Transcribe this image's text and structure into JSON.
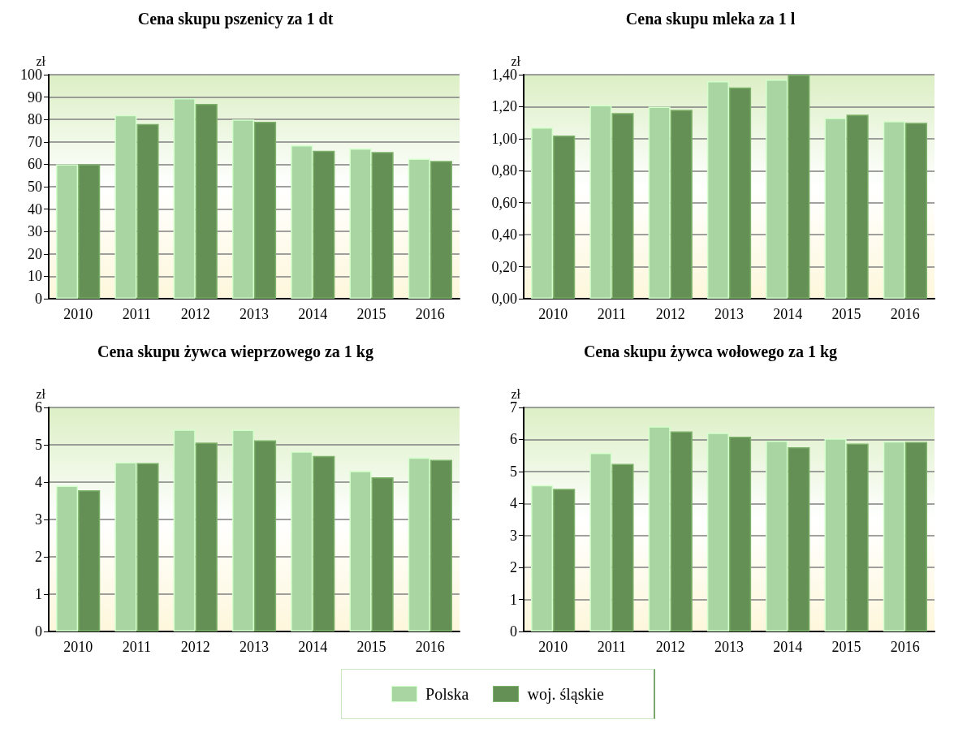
{
  "chart_data": [
    {
      "type": "bar",
      "title": "Cena skupu pszenicy za 1 dt",
      "ylabel": "zł",
      "categories": [
        "2010",
        "2011",
        "2012",
        "2013",
        "2014",
        "2015",
        "2016"
      ],
      "series": [
        {
          "name": "Polska",
          "color": "#a9d5a3",
          "values": [
            60,
            82,
            89.5,
            80,
            68.5,
            67,
            62.5
          ]
        },
        {
          "name": "woj. śląskie",
          "color": "#648f55",
          "values": [
            60,
            78,
            87,
            79,
            66,
            65.5,
            61.5
          ]
        }
      ],
      "ylim": [
        0,
        100
      ],
      "yticks": [
        0,
        10,
        20,
        30,
        40,
        50,
        60,
        70,
        80,
        90,
        100
      ],
      "grid": "y",
      "legend": "bottom"
    },
    {
      "type": "bar",
      "title": "Cena skupu mleka za 1 l",
      "ylabel": "zł",
      "categories": [
        "2010",
        "2011",
        "2012",
        "2013",
        "2014",
        "2015",
        "2016"
      ],
      "series": [
        {
          "name": "Polska",
          "color": "#a9d5a3",
          "values": [
            1.07,
            1.21,
            1.2,
            1.36,
            1.37,
            1.13,
            1.11
          ]
        },
        {
          "name": "woj. śląskie",
          "color": "#648f55",
          "values": [
            1.02,
            1.16,
            1.18,
            1.32,
            1.4,
            1.15,
            1.1
          ]
        }
      ],
      "ylim": [
        0,
        1.4
      ],
      "yticks": [
        {
          "value": 0,
          "label": "0,00"
        },
        {
          "value": 0.2,
          "label": "0,20"
        },
        {
          "value": 0.4,
          "label": "0,40"
        },
        {
          "value": 0.6,
          "label": "0,60"
        },
        {
          "value": 0.8,
          "label": "0,80"
        },
        {
          "value": 1,
          "label": "1,00"
        },
        {
          "value": 1.2,
          "label": "1,20"
        },
        {
          "value": 1.4,
          "label": "1,40"
        }
      ],
      "grid": "y",
      "legend": "bottom"
    },
    {
      "type": "bar",
      "title": "Cena skupu żywca wieprzowego za 1 kg",
      "ylabel": "zł",
      "categories": [
        "2010",
        "2011",
        "2012",
        "2013",
        "2014",
        "2015",
        "2016"
      ],
      "series": [
        {
          "name": "Polska",
          "color": "#a9d5a3",
          "values": [
            3.9,
            4.53,
            5.41,
            5.4,
            4.82,
            4.3,
            4.66
          ]
        },
        {
          "name": "woj. śląskie",
          "color": "#648f55",
          "values": [
            3.78,
            4.51,
            5.06,
            5.12,
            4.7,
            4.13,
            4.6
          ]
        }
      ],
      "ylim": [
        0,
        6
      ],
      "yticks": [
        0,
        1,
        2,
        3,
        4,
        5,
        6
      ],
      "grid": "y",
      "legend": "bottom"
    },
    {
      "type": "bar",
      "title": "Cena skupu żywca wołowego za 1 kg",
      "ylabel": "zł",
      "categories": [
        "2010",
        "2011",
        "2012",
        "2013",
        "2014",
        "2015",
        "2016"
      ],
      "series": [
        {
          "name": "Polska",
          "color": "#a9d5a3",
          "values": [
            4.57,
            5.58,
            6.41,
            6.21,
            5.96,
            6.03,
            5.94
          ]
        },
        {
          "name": "woj. śląskie",
          "color": "#648f55",
          "values": [
            4.46,
            5.24,
            6.25,
            6.09,
            5.76,
            5.87,
            5.92
          ]
        }
      ],
      "ylim": [
        0,
        7
      ],
      "yticks": [
        0,
        1,
        2,
        3,
        4,
        5,
        6,
        7
      ],
      "grid": "y",
      "legend": "bottom"
    }
  ]
}
